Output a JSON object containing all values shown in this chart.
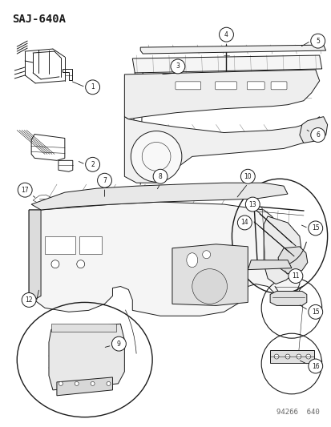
{
  "title": "SAJ-640A",
  "footer": "94266  640",
  "bg": "#ffffff",
  "lc": "#1a1a1a",
  "gray": "#888888",
  "light_gray": "#cccccc",
  "title_fs": 10,
  "footer_fs": 6.5,
  "callout_r": 0.018,
  "callout_fs": 5.5,
  "figsize": [
    4.14,
    5.33
  ],
  "dpi": 100
}
